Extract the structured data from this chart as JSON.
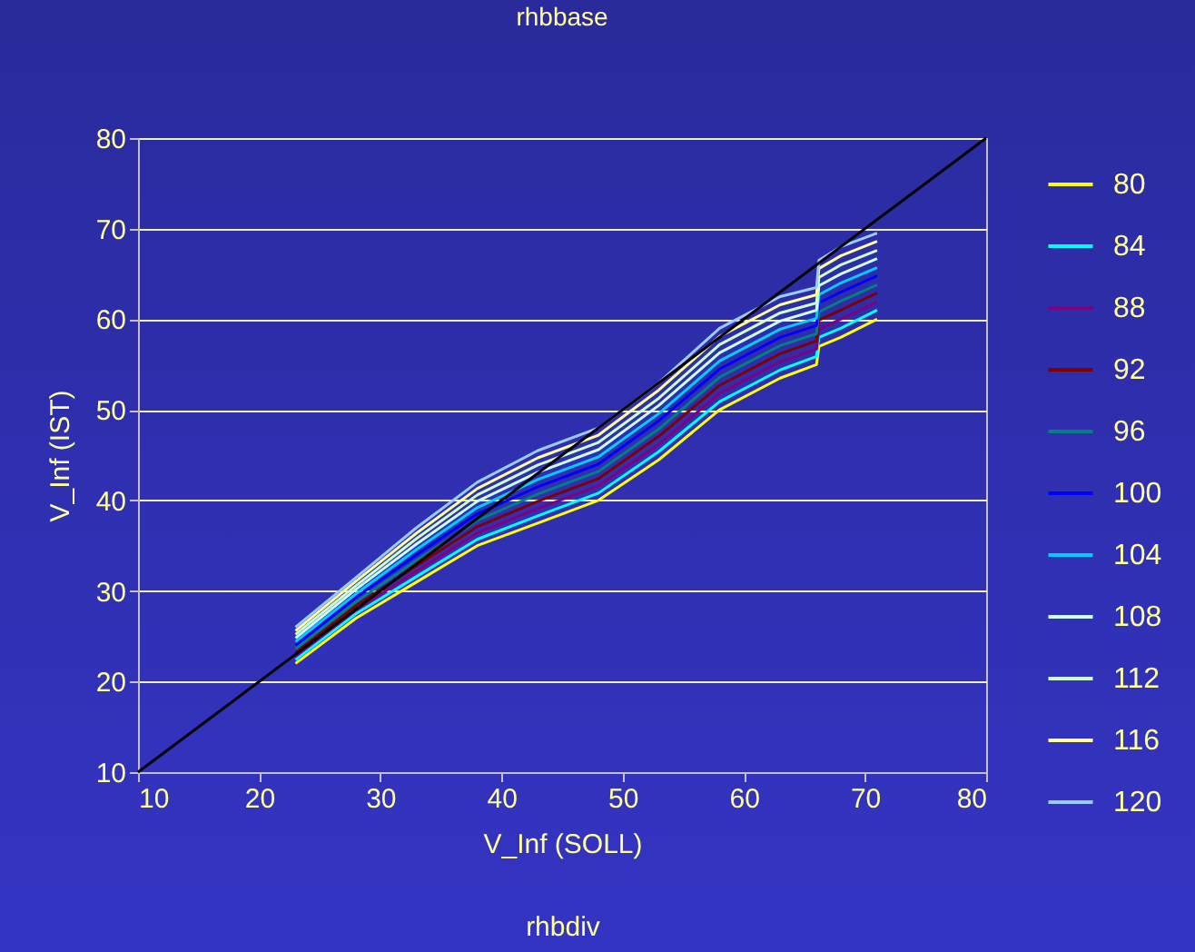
{
  "chart_data": {
    "type": "line",
    "title": "rhbbase",
    "xlabel": "V_Inf (SOLL)",
    "ylabel": "V_Inf (IST)",
    "annotations": [
      "rhbdiv"
    ],
    "x": [
      23,
      28,
      33,
      38,
      43,
      48,
      53,
      58,
      63,
      66,
      66.2,
      68,
      71
    ],
    "xlim": [
      10,
      80
    ],
    "xticks": [
      10,
      20,
      30,
      40,
      50,
      60,
      70,
      80
    ],
    "ylim": [
      10,
      80
    ],
    "yticks": [
      10,
      20,
      30,
      40,
      50,
      60,
      70,
      80
    ],
    "grid": "y",
    "legend": "right",
    "series": [
      {
        "name": "80",
        "color": "#ffff00",
        "values": [
          22,
          27,
          31,
          35,
          37.5,
          40,
          44.5,
          50,
          53.5,
          55,
          57,
          58,
          60
        ]
      },
      {
        "name": "84",
        "color": "#00ffff",
        "values": [
          22.4,
          27.5,
          31.6,
          35.7,
          38.3,
          40.8,
          45.4,
          50.9,
          54.4,
          55.9,
          58,
          59,
          61
        ]
      },
      {
        "name": "88",
        "color": "#800080",
        "values": [
          22.8,
          27.9,
          32.2,
          36.4,
          39.1,
          41.6,
          46.2,
          51.8,
          55.3,
          56.7,
          58.9,
          60,
          61.9
        ]
      },
      {
        "name": "92",
        "color": "#800000",
        "values": [
          23.2,
          28.4,
          32.8,
          37.1,
          39.9,
          42.4,
          47.1,
          52.7,
          56.2,
          57.6,
          59.9,
          61,
          62.9
        ]
      },
      {
        "name": "96",
        "color": "#008080",
        "values": [
          23.6,
          28.8,
          33.4,
          37.8,
          40.7,
          43.2,
          47.9,
          53.6,
          57.1,
          58.4,
          60.8,
          62,
          63.8
        ]
      },
      {
        "name": "100",
        "color": "#0000ff",
        "values": [
          24,
          29.3,
          34,
          38.5,
          41.5,
          44,
          48.8,
          54.5,
          58,
          59.3,
          61.8,
          63,
          64.8
        ]
      },
      {
        "name": "104",
        "color": "#00ccff",
        "values": [
          24.4,
          29.7,
          34.6,
          39.2,
          42.3,
          44.8,
          49.6,
          55.4,
          58.9,
          60.1,
          62.7,
          64,
          65.7
        ]
      },
      {
        "name": "108",
        "color": "#ccffff",
        "values": [
          24.8,
          30.2,
          35.2,
          39.9,
          43.1,
          45.6,
          50.5,
          56.3,
          59.8,
          61,
          63.7,
          65,
          66.7
        ]
      },
      {
        "name": "112",
        "color": "#ccffcc",
        "values": [
          25.2,
          30.6,
          35.8,
          40.6,
          43.9,
          46.4,
          51.3,
          57.2,
          60.7,
          61.8,
          64.6,
          66,
          67.6
        ]
      },
      {
        "name": "116",
        "color": "#ffff99",
        "values": [
          25.6,
          31.1,
          36.4,
          41.3,
          44.7,
          47.2,
          52.2,
          58.1,
          61.6,
          62.7,
          65.6,
          67,
          68.6
        ]
      },
      {
        "name": "120",
        "color": "#99ccff",
        "values": [
          26,
          31.5,
          37,
          42,
          45.5,
          48,
          53,
          59,
          62.5,
          63.5,
          66.5,
          68,
          69.5
        ]
      },
      {
        "color": "#000000",
        "x": [
          10,
          80
        ],
        "values": [
          10,
          80
        ]
      }
    ]
  }
}
